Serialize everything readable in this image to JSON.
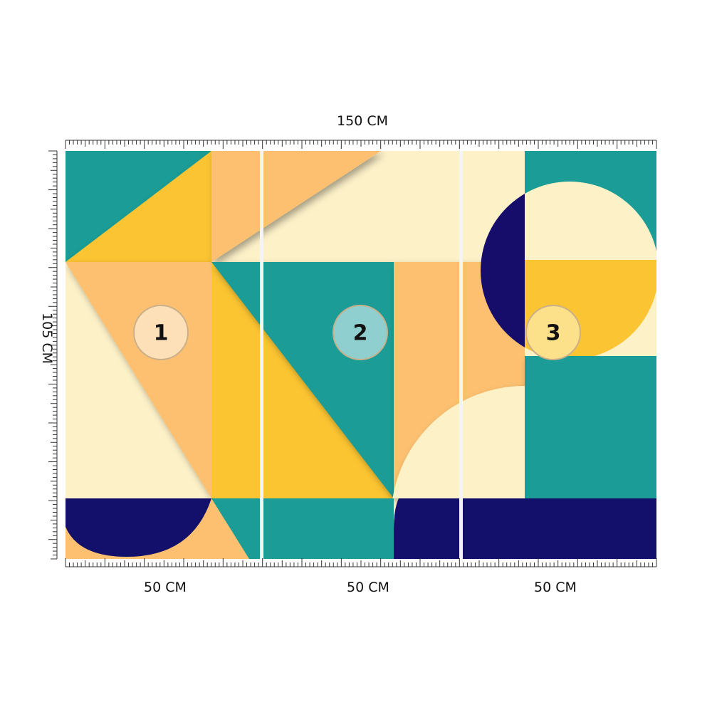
{
  "dimensions": {
    "width": "150 CM",
    "height": "105 CM"
  },
  "panels": [
    {
      "number": "1",
      "width": "50 CM"
    },
    {
      "number": "2",
      "width": "50 CM"
    },
    {
      "number": "3",
      "width": "50 CM"
    }
  ]
}
